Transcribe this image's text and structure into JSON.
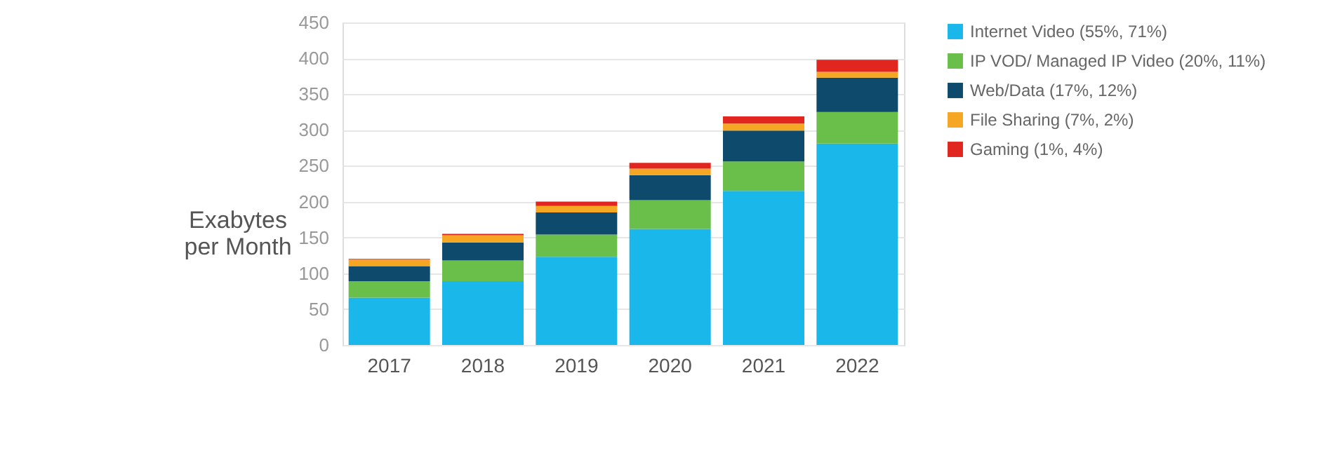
{
  "chart_data": {
    "type": "bar",
    "stacked": true,
    "ylabel": "Exabytes per Month",
    "categories": [
      "2017",
      "2018",
      "2019",
      "2020",
      "2021",
      "2022"
    ],
    "series": [
      {
        "name": "Internet Video (55%, 71%)",
        "color": "#1ab7ea",
        "values": [
          66,
          89,
          123,
          162,
          215,
          281
        ]
      },
      {
        "name": "IP VOD/ Managed IP Video (20%, 11%)",
        "color": "#6abf4b",
        "values": [
          23,
          29,
          31,
          40,
          41,
          44
        ]
      },
      {
        "name": "Web/Data (17%, 12%)",
        "color": "#0d4a6b",
        "values": [
          21,
          25,
          31,
          35,
          43,
          48
        ]
      },
      {
        "name": "File Sharing (7%, 2%)",
        "color": "#f5a623",
        "values": [
          9,
          10,
          9,
          9,
          10,
          8
        ]
      },
      {
        "name": "Gaming (1%, 4%)",
        "color": "#e0261f",
        "values": [
          1,
          2,
          6,
          8,
          10,
          17
        ]
      }
    ],
    "ylim": [
      0,
      450
    ],
    "yticks": [
      0,
      50,
      100,
      150,
      200,
      250,
      300,
      350,
      400,
      450
    ],
    "grid": "y",
    "legend": "right"
  }
}
